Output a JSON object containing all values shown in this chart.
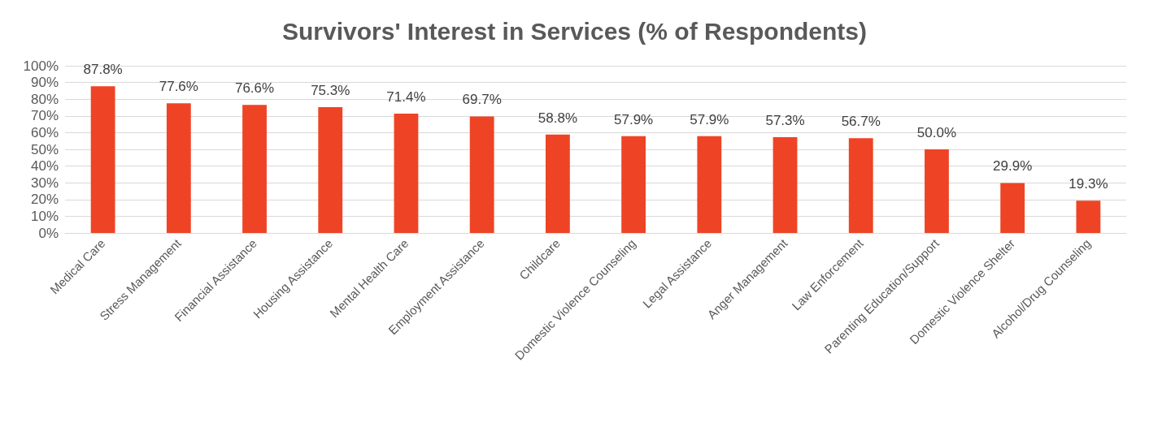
{
  "chart_data": {
    "type": "bar",
    "title": "Survivors' Interest in Services (% of Respondents)",
    "categories": [
      "Medical Care",
      "Stress Management",
      "Financial Assistance",
      "Housing Assistance",
      "Mental Health Care",
      "Employment Assistance",
      "Childcare",
      "Domestic Violence Counseling",
      "Legal Assistance",
      "Anger Management",
      "Law Enforcement",
      "Parenting Education/Support",
      "Domestic Violence Shelter",
      "Alcohol/Drug Counseling"
    ],
    "values": [
      87.8,
      77.6,
      76.6,
      75.3,
      71.4,
      69.7,
      58.8,
      57.9,
      57.9,
      57.3,
      56.7,
      50.0,
      29.9,
      19.3
    ],
    "value_labels": [
      "87.8%",
      "77.6%",
      "76.6%",
      "75.3%",
      "71.4%",
      "69.7%",
      "58.8%",
      "57.9%",
      "57.9%",
      "57.3%",
      "56.7%",
      "50.0%",
      "29.9%",
      "19.3%"
    ],
    "color": "#ee4425",
    "ylim": [
      0,
      100
    ],
    "yticks": [
      {
        "value": 0,
        "label": "0%"
      },
      {
        "value": 10,
        "label": "10%"
      },
      {
        "value": 20,
        "label": "20%"
      },
      {
        "value": 30,
        "label": "30%"
      },
      {
        "value": 40,
        "label": "40%"
      },
      {
        "value": 50,
        "label": "50%"
      },
      {
        "value": 60,
        "label": "60%"
      },
      {
        "value": 70,
        "label": "70%"
      },
      {
        "value": 80,
        "label": "80%"
      },
      {
        "value": 90,
        "label": "90%"
      },
      {
        "value": 100,
        "label": "100%"
      }
    ],
    "grid": "y"
  }
}
